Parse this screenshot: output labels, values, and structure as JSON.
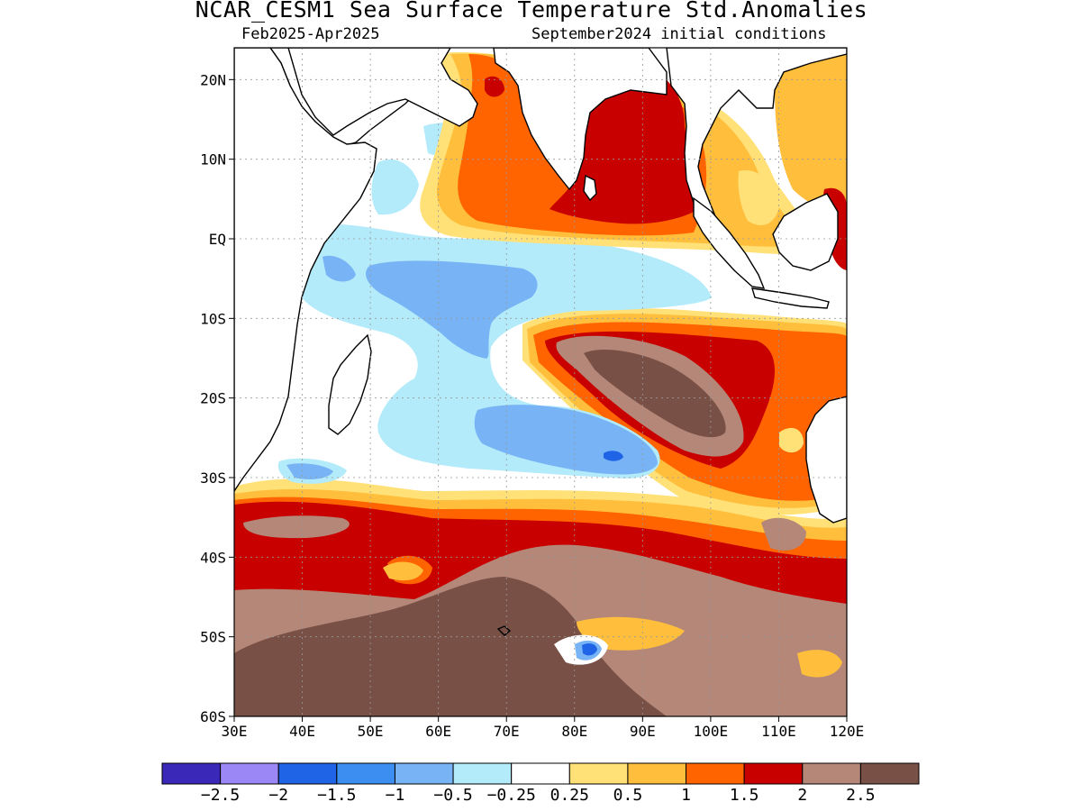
{
  "title": "NCAR_CESM1 Sea Surface Temperature Std.Anomalies",
  "subtitle_left": "Feb2025-Apr2025",
  "subtitle_right": "September2024 initial conditions",
  "map": {
    "lon_range": [
      30,
      120
    ],
    "lat_range": [
      -60,
      24
    ],
    "lon_ticks": [
      {
        "value": 30,
        "label": "30E"
      },
      {
        "value": 40,
        "label": "40E"
      },
      {
        "value": 50,
        "label": "50E"
      },
      {
        "value": 60,
        "label": "60E"
      },
      {
        "value": 70,
        "label": "70E"
      },
      {
        "value": 80,
        "label": "80E"
      },
      {
        "value": 90,
        "label": "90E"
      },
      {
        "value": 100,
        "label": "100E"
      },
      {
        "value": 110,
        "label": "110E"
      },
      {
        "value": 120,
        "label": "120E"
      }
    ],
    "lat_ticks": [
      {
        "value": 20,
        "label": "20N"
      },
      {
        "value": 10,
        "label": "10N"
      },
      {
        "value": 0,
        "label": "EQ"
      },
      {
        "value": -10,
        "label": "10S"
      },
      {
        "value": -20,
        "label": "20S"
      },
      {
        "value": -30,
        "label": "30S"
      },
      {
        "value": -40,
        "label": "40S"
      },
      {
        "value": -50,
        "label": "50S"
      },
      {
        "value": -60,
        "label": "60S"
      }
    ],
    "grid": "dotted"
  },
  "colorbar": {
    "colors": [
      "#3a28b8",
      "#9b87f5",
      "#1f64e6",
      "#3c8ff0",
      "#78b4f5",
      "#b4ebfa",
      "#ffffff",
      "#ffe178",
      "#ffbe3c",
      "#ff6400",
      "#c80000",
      "#b48778",
      "#785046"
    ],
    "labels": [
      "-2.5",
      "-2",
      "-1.5",
      "-1",
      "-0.5",
      "-0.25",
      "0.25",
      "0.5",
      "1",
      "1.5",
      "2",
      "2.5"
    ]
  },
  "colors": {
    "land": "#ffffff",
    "coast": "#000000"
  }
}
